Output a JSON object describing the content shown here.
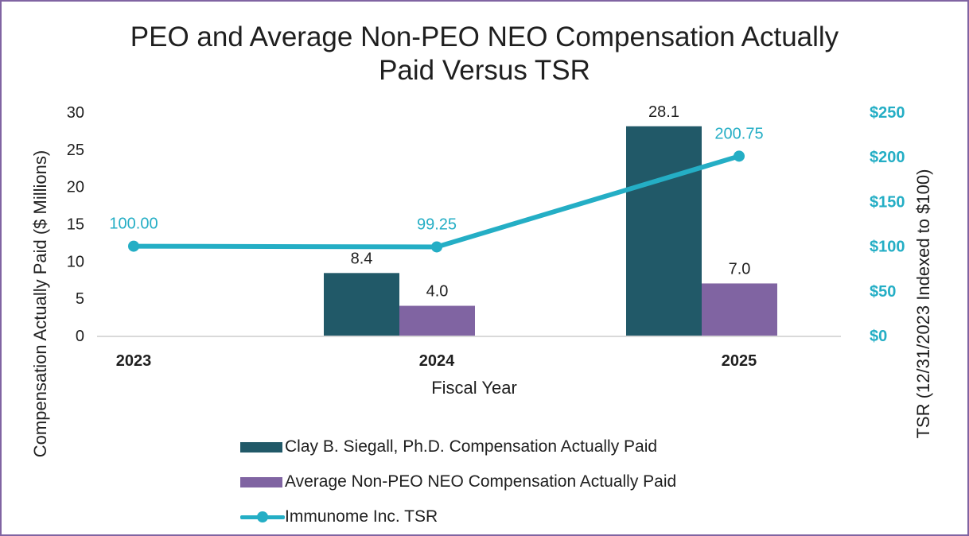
{
  "chart_data": {
    "type": "bar+line",
    "title": "PEO and Average Non-PEO NEO Compensation Actually Paid Versus TSR",
    "title_lines": [
      "PEO and Average Non-PEO NEO Compensation Actually",
      "Paid Versus TSR"
    ],
    "xlabel": "Fiscal Year",
    "ylabel": "Compensation Actually Paid ($ Millions)",
    "y2label": "TSR (12/31/2023 Indexed to $100)",
    "categories": [
      "2023",
      "2024",
      "2025"
    ],
    "ylim": [
      0,
      30
    ],
    "y_ticks": [
      "0",
      "5",
      "10",
      "15",
      "20",
      "25",
      "30"
    ],
    "y_tick_values": [
      0,
      5,
      10,
      15,
      20,
      25,
      30
    ],
    "y2lim": [
      0,
      250
    ],
    "y2_ticks": [
      "$0",
      "$50",
      "$100",
      "$150",
      "$200",
      "$250"
    ],
    "y2_tick_values": [
      0,
      50,
      100,
      150,
      200,
      250
    ],
    "grid": false,
    "legend_position": "bottom",
    "series": [
      {
        "name": "Clay B. Siegall, Ph.D. Compensation Actually Paid",
        "type": "bar",
        "axis": "left",
        "color": "#215968",
        "values": [
          null,
          8.4,
          28.1
        ],
        "labels": [
          "",
          "8.4",
          "28.1"
        ]
      },
      {
        "name": "Average Non-PEO NEO Compensation Actually Paid",
        "type": "bar",
        "axis": "left",
        "color": "#8064a2",
        "values": [
          null,
          4.0,
          7.0
        ],
        "labels": [
          "",
          "4.0",
          "7.0"
        ]
      },
      {
        "name": "Immunome Inc. TSR",
        "type": "line",
        "axis": "right",
        "color": "#24aec5",
        "values": [
          100.0,
          99.25,
          200.75
        ],
        "labels": [
          "100.00",
          "99.25",
          "200.75"
        ]
      }
    ]
  }
}
